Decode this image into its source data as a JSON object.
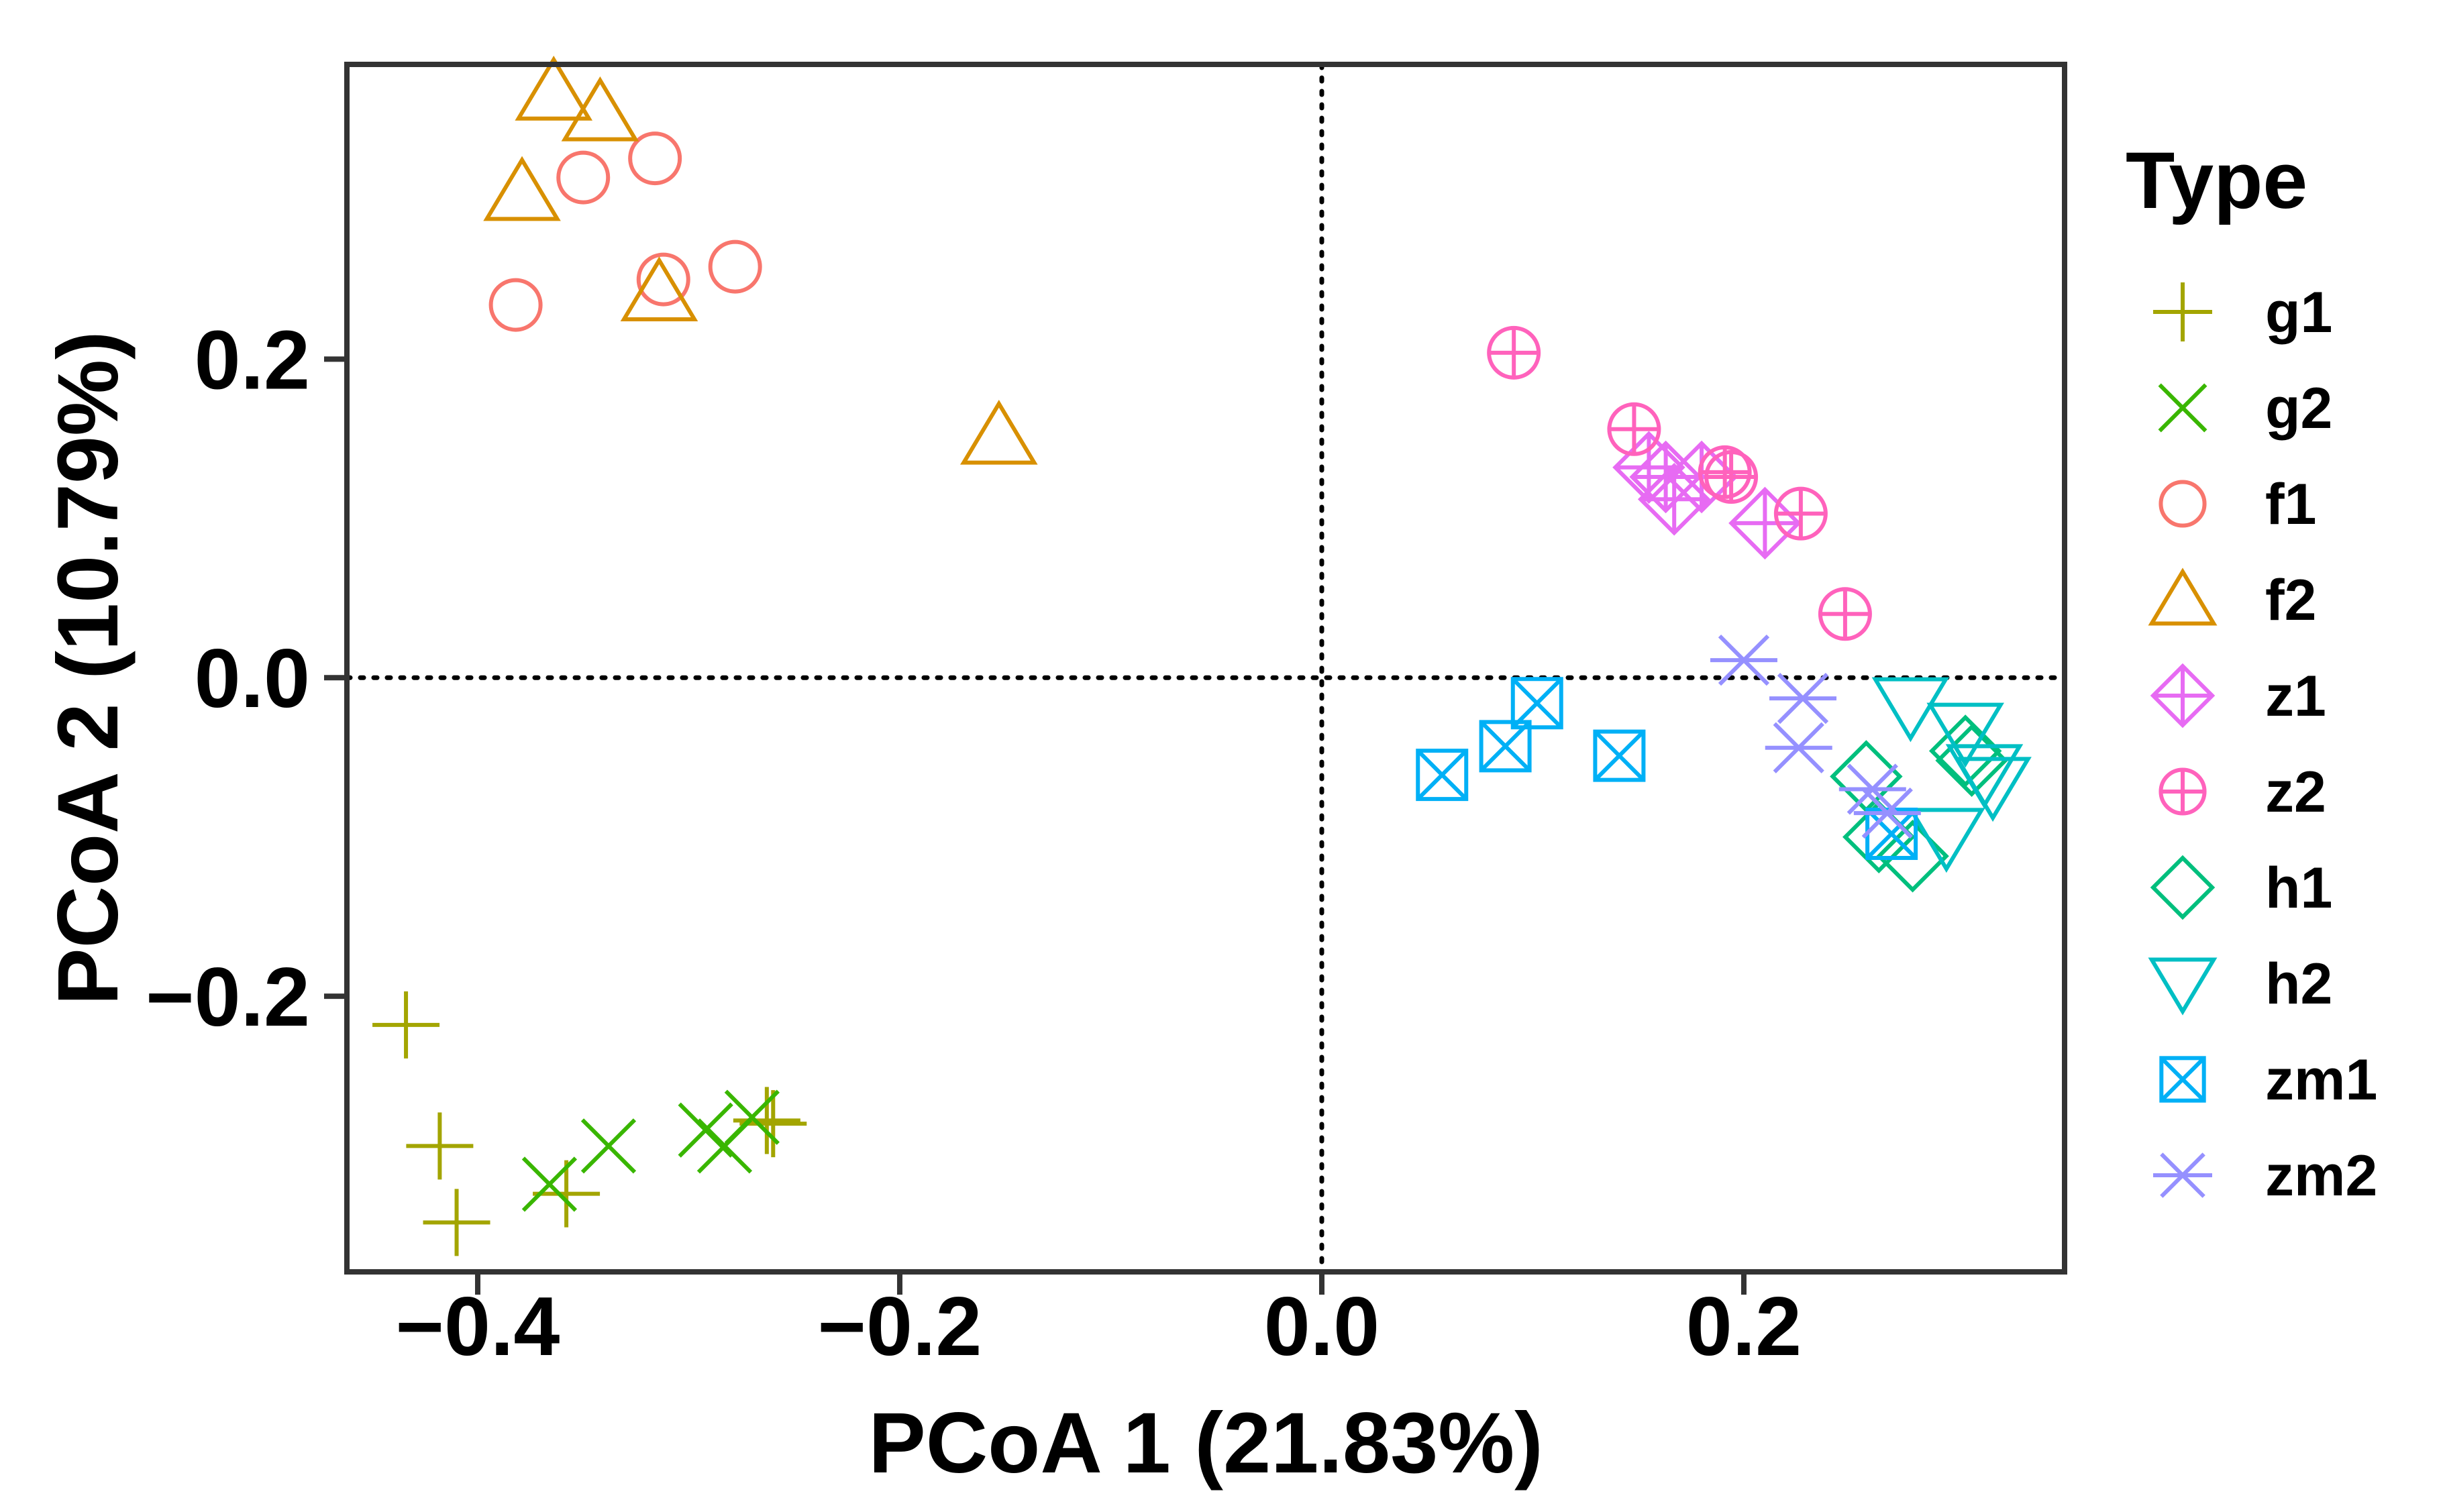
{
  "chart_data": {
    "type": "scatter",
    "xlabel": "PCoA 1 (21.83%)",
    "ylabel": "PCoA 2 (10.79%)",
    "xlim": [
      -0.462,
      0.352
    ],
    "ylim": [
      -0.373,
      0.385
    ],
    "xticks": [
      -0.4,
      -0.2,
      0.0,
      0.2
    ],
    "xtick_labels": [
      "−0.4",
      "−0.2",
      "0.0",
      "0.2"
    ],
    "yticks": [
      -0.2,
      0.0,
      0.2
    ],
    "ytick_labels": [
      "−0.2",
      "0.0",
      "0.2"
    ],
    "reference_lines": {
      "x": 0.0,
      "y": 0.0,
      "style": "dotted"
    },
    "grid": false,
    "legend": {
      "title": "Type",
      "position": "right"
    },
    "series": [
      {
        "name": "g1",
        "shape": "plus",
        "color": "#A3A500",
        "points": [
          [
            -0.434,
            -0.218
          ],
          [
            -0.418,
            -0.294
          ],
          [
            -0.41,
            -0.342
          ],
          [
            -0.358,
            -0.324
          ],
          [
            -0.263,
            -0.278
          ],
          [
            -0.26,
            -0.28
          ]
        ]
      },
      {
        "name": "g2",
        "shape": "cross",
        "color": "#39B600",
        "points": [
          [
            -0.366,
            -0.318
          ],
          [
            -0.338,
            -0.294
          ],
          [
            -0.292,
            -0.284
          ],
          [
            -0.283,
            -0.294
          ],
          [
            -0.27,
            -0.276
          ]
        ]
      },
      {
        "name": "f1",
        "shape": "circle",
        "color": "#F8766D",
        "points": [
          [
            -0.382,
            0.234
          ],
          [
            -0.35,
            0.314
          ],
          [
            -0.316,
            0.326
          ],
          [
            -0.312,
            0.25
          ],
          [
            -0.278,
            0.258
          ]
        ]
      },
      {
        "name": "f2",
        "shape": "triangle",
        "color": "#D89000",
        "points": [
          [
            -0.364,
            0.368
          ],
          [
            -0.342,
            0.355
          ],
          [
            -0.379,
            0.305
          ],
          [
            -0.314,
            0.242
          ],
          [
            -0.153,
            0.152
          ]
        ]
      },
      {
        "name": "z1",
        "shape": "diamond-plus",
        "color": "#E76BF3",
        "points": [
          [
            0.155,
            0.132
          ],
          [
            0.163,
            0.126
          ],
          [
            0.167,
            0.112
          ],
          [
            0.18,
            0.126
          ],
          [
            0.21,
            0.097
          ]
        ]
      },
      {
        "name": "z2",
        "shape": "circle-plus",
        "color": "#FF62BC",
        "points": [
          [
            0.091,
            0.204
          ],
          [
            0.148,
            0.156
          ],
          [
            0.191,
            0.129
          ],
          [
            0.194,
            0.126
          ],
          [
            0.227,
            0.103
          ],
          [
            0.248,
            0.04
          ]
        ]
      },
      {
        "name": "h1",
        "shape": "diamond",
        "color": "#00BF7D",
        "points": [
          [
            0.258,
            -0.062
          ],
          [
            0.264,
            -0.1
          ],
          [
            0.28,
            -0.112
          ],
          [
            0.305,
            -0.046
          ],
          [
            0.308,
            -0.052
          ]
        ]
      },
      {
        "name": "h2",
        "shape": "triangle-down",
        "color": "#00BFC4",
        "points": [
          [
            0.279,
            -0.018
          ],
          [
            0.296,
            -0.1
          ],
          [
            0.305,
            -0.034
          ],
          [
            0.314,
            -0.06
          ],
          [
            0.318,
            -0.068
          ]
        ]
      },
      {
        "name": "zm1",
        "shape": "square-cross",
        "color": "#00B0F6",
        "points": [
          [
            0.057,
            -0.061
          ],
          [
            0.087,
            -0.043
          ],
          [
            0.102,
            -0.016
          ],
          [
            0.141,
            -0.049
          ],
          [
            0.27,
            -0.098
          ]
        ]
      },
      {
        "name": "zm2",
        "shape": "asterisk",
        "color": "#9590FF",
        "points": [
          [
            0.2,
            0.011
          ],
          [
            0.228,
            -0.013
          ],
          [
            0.226,
            -0.044
          ],
          [
            0.261,
            -0.07
          ],
          [
            0.268,
            -0.085
          ]
        ]
      }
    ]
  }
}
